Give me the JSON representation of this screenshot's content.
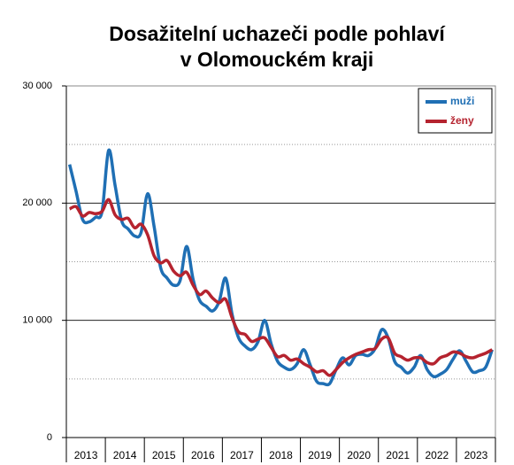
{
  "chart_data": {
    "type": "line",
    "title": [
      "Dosažitelní uchazeči podle pohlaví",
      "v Olomouckém kraji"
    ],
    "categories": [
      null,
      null,
      null,
      "2013",
      null,
      null,
      null,
      null,
      null,
      "2014",
      null,
      null,
      null,
      null,
      null,
      "2015",
      null,
      null,
      null,
      null,
      null,
      "2016",
      null,
      null,
      null,
      null,
      null,
      "2017",
      null,
      null,
      null,
      null,
      null,
      "2018",
      null,
      null,
      null,
      null,
      null,
      "2019",
      null,
      null,
      null,
      null,
      null,
      "2020",
      null,
      null,
      null,
      null,
      null,
      "2021",
      null,
      null,
      null,
      null,
      null,
      "2022",
      null,
      null,
      null,
      null,
      null,
      "2023",
      null,
      null
    ],
    "series": [
      {
        "name": "muži",
        "color": "#1f6fb4",
        "values": [
          23300,
          21000,
          18600,
          18400,
          18800,
          19300,
          24500,
          21500,
          18500,
          17800,
          17200,
          17500,
          20800,
          18000,
          14500,
          13600,
          13000,
          13400,
          16300,
          13500,
          11700,
          11200,
          10800,
          11600,
          13600,
          10500,
          8500,
          7800,
          7500,
          8200,
          10000,
          8000,
          6500,
          6000,
          5800,
          6300,
          7500,
          6200,
          4800,
          4600,
          4600,
          5800,
          6800,
          6200,
          7000,
          7100,
          7000,
          7600,
          9200,
          8500,
          6500,
          6000,
          5500,
          6000,
          7000,
          5800,
          5200,
          5400,
          5800,
          6700,
          7400,
          6500,
          5600,
          5700,
          6000,
          7500
        ]
      },
      {
        "name": "ženy",
        "color": "#b5232f",
        "values": [
          19500,
          19700,
          18900,
          19200,
          19100,
          19300,
          20300,
          19000,
          18600,
          18700,
          17900,
          18200,
          17300,
          15500,
          14900,
          15100,
          14200,
          13800,
          14100,
          13000,
          12200,
          12500,
          11900,
          11500,
          11800,
          10200,
          9000,
          8800,
          8200,
          8400,
          8500,
          7700,
          6900,
          7000,
          6600,
          6700,
          6300,
          6000,
          5600,
          5700,
          5300,
          5800,
          6400,
          6800,
          7100,
          7300,
          7500,
          7600,
          8400,
          8500,
          7200,
          6900,
          6600,
          6800,
          6800,
          6400,
          6300,
          6800,
          7000,
          7300,
          7200,
          6900,
          6800,
          7000,
          7200,
          7500
        ]
      }
    ],
    "ylim": [
      0,
      30000
    ],
    "yticks": [
      0,
      {
        "value": 10000,
        "label": "10 000"
      },
      {
        "value": 20000,
        "label": "20 000"
      },
      {
        "value": 30000,
        "label": "30 000"
      }
    ],
    "minor_yticks": [
      5000,
      15000,
      25000
    ],
    "grid": true,
    "legend": "upper right"
  }
}
